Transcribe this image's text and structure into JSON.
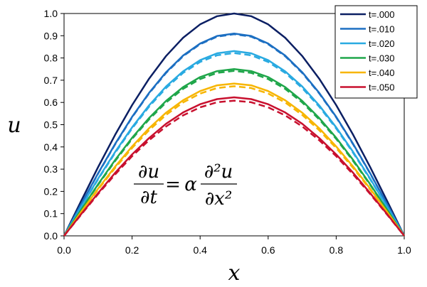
{
  "chart_data": {
    "type": "line",
    "xlabel": "x",
    "ylabel": "u",
    "xlim": [
      0,
      1
    ],
    "ylim": [
      0,
      1
    ],
    "x_ticks": [
      "0.0",
      "0.2",
      "0.4",
      "0.6",
      "0.8",
      "1.0"
    ],
    "y_ticks": [
      "0.0",
      "0.1",
      "0.2",
      "0.3",
      "0.4",
      "0.5",
      "0.6",
      "0.7",
      "0.8",
      "0.9",
      "1.0"
    ],
    "grid": false,
    "legend_position": "top-right",
    "x": [
      0,
      0.05,
      0.1,
      0.15,
      0.2,
      0.25,
      0.3,
      0.35,
      0.4,
      0.45,
      0.5,
      0.55,
      0.6,
      0.65,
      0.7,
      0.75,
      0.8,
      0.85,
      0.9,
      0.95,
      1.0
    ],
    "series": [
      {
        "name": "t=.000",
        "color": "#0b1f63",
        "style": "solid",
        "values": [
          0,
          0.156,
          0.309,
          0.454,
          0.588,
          0.707,
          0.809,
          0.891,
          0.951,
          0.988,
          1.0,
          0.988,
          0.951,
          0.891,
          0.809,
          0.707,
          0.588,
          0.454,
          0.309,
          0.156,
          0
        ]
      },
      {
        "name": "t=.010",
        "color": "#1c6fc2",
        "style": "solid",
        "values": [
          0,
          0.142,
          0.281,
          0.413,
          0.535,
          0.643,
          0.736,
          0.811,
          0.865,
          0.899,
          0.91,
          0.899,
          0.865,
          0.811,
          0.736,
          0.643,
          0.535,
          0.413,
          0.281,
          0.142,
          0
        ]
      },
      {
        "color": "#1c6fc2",
        "style": "dashed",
        "values": [
          0,
          0.141,
          0.28,
          0.411,
          0.533,
          0.641,
          0.733,
          0.808,
          0.862,
          0.896,
          0.907,
          0.896,
          0.862,
          0.808,
          0.733,
          0.641,
          0.533,
          0.411,
          0.28,
          0.141,
          0
        ]
      },
      {
        "name": "t=.020",
        "color": "#29aae1",
        "style": "solid",
        "values": [
          0,
          0.13,
          0.257,
          0.377,
          0.488,
          0.587,
          0.672,
          0.74,
          0.79,
          0.821,
          0.831,
          0.821,
          0.79,
          0.74,
          0.672,
          0.587,
          0.488,
          0.377,
          0.257,
          0.13,
          0
        ]
      },
      {
        "color": "#29aae1",
        "style": "dashed",
        "values": [
          0,
          0.128,
          0.254,
          0.373,
          0.483,
          0.581,
          0.665,
          0.733,
          0.782,
          0.812,
          0.822,
          0.812,
          0.782,
          0.733,
          0.665,
          0.581,
          0.483,
          0.373,
          0.254,
          0.128,
          0
        ]
      },
      {
        "name": "t=.030",
        "color": "#1fa64a",
        "style": "solid",
        "values": [
          0,
          0.117,
          0.232,
          0.341,
          0.441,
          0.53,
          0.607,
          0.669,
          0.714,
          0.741,
          0.75,
          0.741,
          0.714,
          0.669,
          0.607,
          0.53,
          0.441,
          0.341,
          0.232,
          0.117,
          0
        ]
      },
      {
        "color": "#1fa64a",
        "style": "dashed",
        "values": [
          0,
          0.116,
          0.229,
          0.336,
          0.436,
          0.524,
          0.6,
          0.661,
          0.705,
          0.733,
          0.742,
          0.733,
          0.705,
          0.661,
          0.6,
          0.524,
          0.436,
          0.336,
          0.229,
          0.116,
          0
        ]
      },
      {
        "name": "t=.040",
        "color": "#f7b500",
        "style": "solid",
        "values": [
          0,
          0.107,
          0.212,
          0.311,
          0.402,
          0.484,
          0.554,
          0.61,
          0.651,
          0.677,
          0.685,
          0.677,
          0.651,
          0.61,
          0.554,
          0.484,
          0.402,
          0.311,
          0.212,
          0.107,
          0
        ]
      },
      {
        "color": "#f7b500",
        "style": "dashed",
        "values": [
          0,
          0.105,
          0.208,
          0.305,
          0.395,
          0.475,
          0.544,
          0.6,
          0.64,
          0.665,
          0.673,
          0.665,
          0.64,
          0.6,
          0.544,
          0.475,
          0.395,
          0.305,
          0.208,
          0.105,
          0
        ]
      },
      {
        "name": "t=.050",
        "color": "#c8102e",
        "style": "solid",
        "values": [
          0,
          0.097,
          0.192,
          0.283,
          0.366,
          0.44,
          0.504,
          0.555,
          0.592,
          0.615,
          0.623,
          0.615,
          0.592,
          0.555,
          0.504,
          0.44,
          0.366,
          0.283,
          0.192,
          0.097,
          0
        ]
      },
      {
        "color": "#c8102e",
        "style": "dashed",
        "values": [
          0,
          0.095,
          0.188,
          0.276,
          0.358,
          0.43,
          0.492,
          0.542,
          0.578,
          0.601,
          0.608,
          0.601,
          0.578,
          0.542,
          0.492,
          0.43,
          0.358,
          0.276,
          0.188,
          0.095,
          0
        ]
      }
    ],
    "annotation": {
      "num_left": "∂u",
      "den_left": "∂t",
      "equals": "=",
      "coef": "α",
      "num_right": "∂²u",
      "den_right": "∂x²"
    }
  }
}
